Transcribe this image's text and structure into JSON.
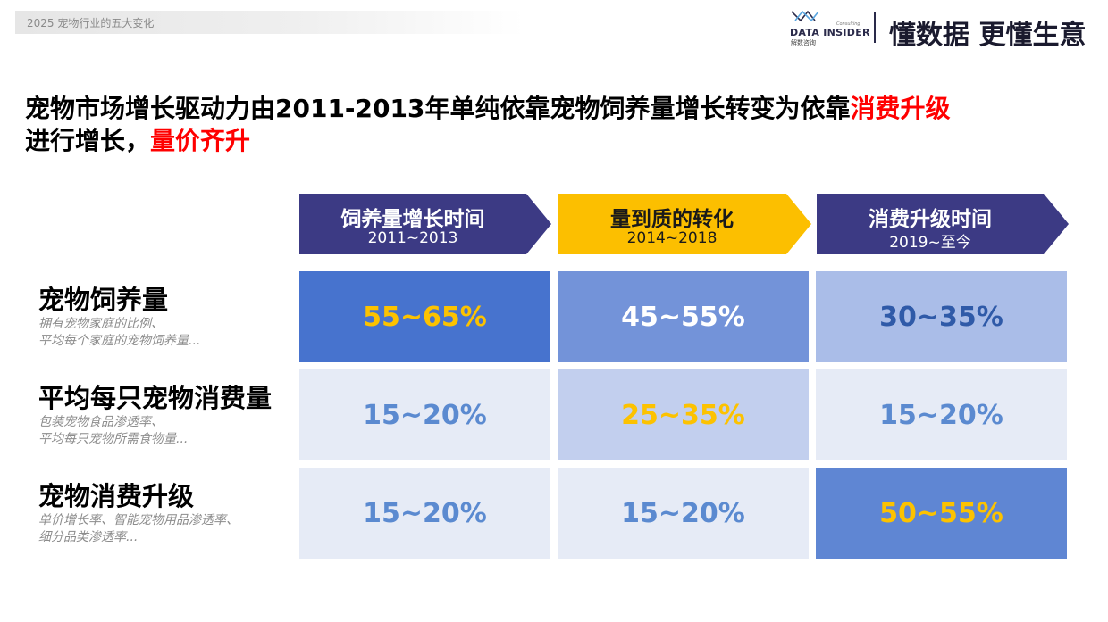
{
  "header": {
    "report_title": "2025 宠物行业的五大变化",
    "brand_name": "DATA INSIDER",
    "brand_sub": "解数咨询",
    "brand_small": "Consulting",
    "slogan": "懂数据 更懂生意"
  },
  "headline": {
    "part1": "宠物市场增长驱动力由2011-2013年单纯依靠宠物饲养量增长转变为依靠",
    "highlight1": "消费升级",
    "part2": "进行增长，",
    "highlight2": "量价齐升"
  },
  "phases": [
    {
      "title": "饲养量增长时间",
      "years": "2011~2013",
      "color": "#3c3a84"
    },
    {
      "title": "量到质的转化",
      "years": "2014~2018",
      "color": "#fcbf00"
    },
    {
      "title": "消费升级时间",
      "years": "2019~至今",
      "color": "#3c3a84"
    }
  ],
  "rows": [
    {
      "title": "宠物饲养量",
      "sub1": "拥有宠物家庭的比例、",
      "sub2": "平均每个家庭的宠物饲养量...",
      "cells": [
        {
          "value": "55~65%",
          "bg": "#4773ce",
          "fg": "#fcc200"
        },
        {
          "value": "45~55%",
          "bg": "#7393d9",
          "fg": "#ffffff"
        },
        {
          "value": "30~35%",
          "bg": "#aabde8",
          "fg": "#2f5aa8"
        }
      ]
    },
    {
      "title": "平均每只宠物消费量",
      "sub1": "包装宠物食品渗透率、",
      "sub2": "平均每只宠物所需食物量...",
      "cells": [
        {
          "value": "15~20%",
          "bg": "#e6ebf6",
          "fg": "#5b8ad0"
        },
        {
          "value": "25~35%",
          "bg": "#c2cfee",
          "fg": "#fcc200"
        },
        {
          "value": "15~20%",
          "bg": "#e6ebf6",
          "fg": "#5b8ad0"
        }
      ]
    },
    {
      "title": "宠物消费升级",
      "sub1": "单价增长率、智能宠物用品渗透率、",
      "sub2": "细分品类渗透率...",
      "cells": [
        {
          "value": "15~20%",
          "bg": "#e6ebf6",
          "fg": "#5b8ad0"
        },
        {
          "value": "15~20%",
          "bg": "#e6ebf6",
          "fg": "#5b8ad0"
        },
        {
          "value": "50~55%",
          "bg": "#5f86d3",
          "fg": "#fcc200"
        }
      ]
    }
  ]
}
